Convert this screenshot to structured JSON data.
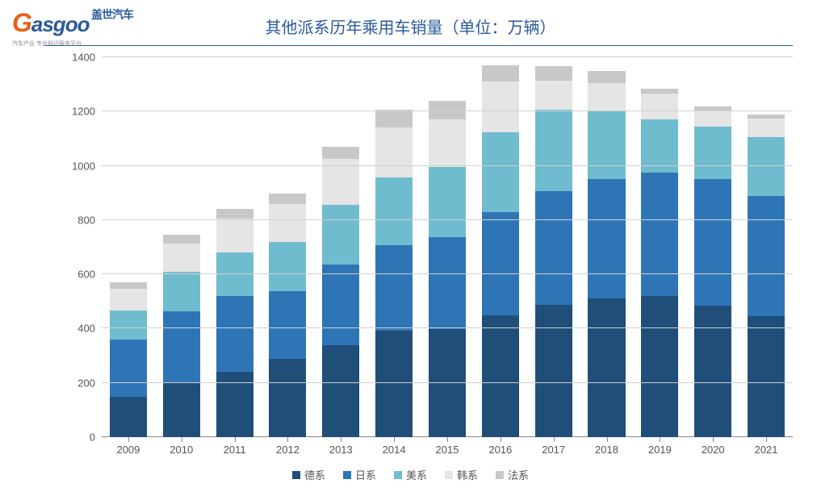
{
  "logo": {
    "brand_cn": "盖世汽车",
    "brand_en_pre": "G",
    "brand_en_rest": "asgoo",
    "tagline": "汽车产业 专业知识服务平台"
  },
  "chart": {
    "type": "stacked_bar",
    "title": "其他派系历年乘用车销量（单位：万辆）",
    "title_fontsize": 20,
    "title_color": "#2a5a9a",
    "label_fontsize": 13,
    "label_color": "#555555",
    "background_color": "#ffffff",
    "grid_color": "#d0d0d0",
    "axis_color": "#888888",
    "bar_width": 0.7,
    "ylim": [
      0,
      1400
    ],
    "ytick_step": 200,
    "categories": [
      "2009",
      "2010",
      "2011",
      "2012",
      "2013",
      "2014",
      "2015",
      "2016",
      "2017",
      "2018",
      "2019",
      "2020",
      "2021"
    ],
    "series": [
      {
        "name": "德系",
        "color": "#1f4e79",
        "values": [
          150,
          198,
          240,
          288,
          340,
          392,
          398,
          450,
          488,
          510,
          520,
          485,
          445
        ]
      },
      {
        "name": "日系",
        "color": "#2e75b6",
        "values": [
          210,
          267,
          280,
          250,
          295,
          315,
          340,
          380,
          420,
          440,
          455,
          465,
          445
        ]
      },
      {
        "name": "美系",
        "color": "#70bccf",
        "values": [
          108,
          145,
          160,
          182,
          220,
          250,
          258,
          295,
          300,
          255,
          195,
          195,
          215
        ]
      },
      {
        "name": "韩系",
        "color": "#e5e5e5",
        "values": [
          80,
          105,
          125,
          140,
          170,
          185,
          175,
          185,
          105,
          100,
          95,
          60,
          70
        ]
      },
      {
        "name": "法系",
        "color": "#c8c8c8",
        "values": [
          23,
          30,
          35,
          38,
          45,
          65,
          70,
          60,
          55,
          45,
          20,
          15,
          15
        ]
      }
    ]
  }
}
